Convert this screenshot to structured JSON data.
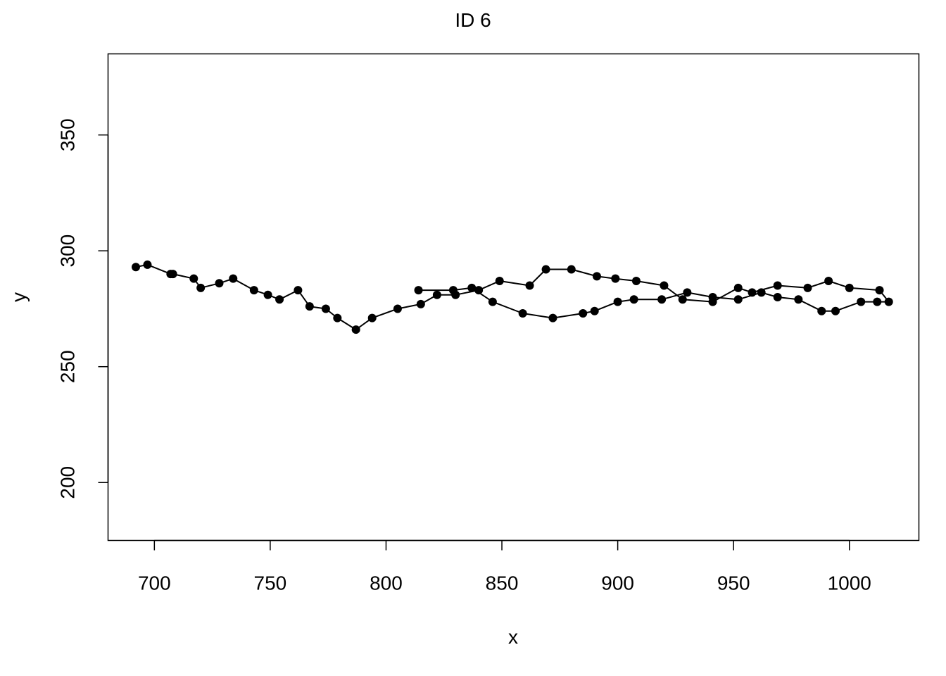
{
  "chart_data": {
    "type": "line",
    "title": "ID 6",
    "xlabel": "x",
    "ylabel": "y",
    "xlim": [
      680,
      1030
    ],
    "ylim": [
      175,
      385
    ],
    "xticks": [
      "700",
      "750",
      "800",
      "850",
      "900",
      "950",
      "1000"
    ],
    "yticks": [
      "200",
      "250",
      "300",
      "350"
    ],
    "grid": false,
    "legend": "none",
    "markers": true,
    "series": [
      {
        "x": [
          692,
          697,
          707,
          708,
          717,
          720,
          728,
          734,
          743,
          749,
          754,
          762,
          767,
          774,
          779,
          787,
          794,
          805,
          815,
          822,
          830,
          840,
          849,
          862,
          869,
          880,
          891,
          899,
          908,
          920,
          928,
          941,
          952,
          958,
          969,
          982,
          991,
          1000,
          1013,
          1017,
          1012,
          1005,
          994,
          988,
          978,
          969,
          962,
          952,
          941,
          930,
          919,
          907,
          900,
          890,
          885,
          872,
          859,
          846,
          837,
          829,
          814
        ],
        "y": [
          293,
          294,
          290,
          290,
          288,
          284,
          286,
          288,
          283,
          281,
          279,
          283,
          276,
          275,
          271,
          266,
          271,
          275,
          277,
          281,
          281,
          283,
          287,
          285,
          292,
          292,
          289,
          288,
          287,
          285,
          279,
          278,
          284,
          282,
          285,
          284,
          287,
          284,
          283,
          278,
          278,
          278,
          274,
          274,
          279,
          280,
          282,
          279,
          280,
          282,
          279,
          279,
          278,
          274,
          273,
          271,
          273,
          278,
          284,
          283,
          283
        ]
      }
    ]
  }
}
